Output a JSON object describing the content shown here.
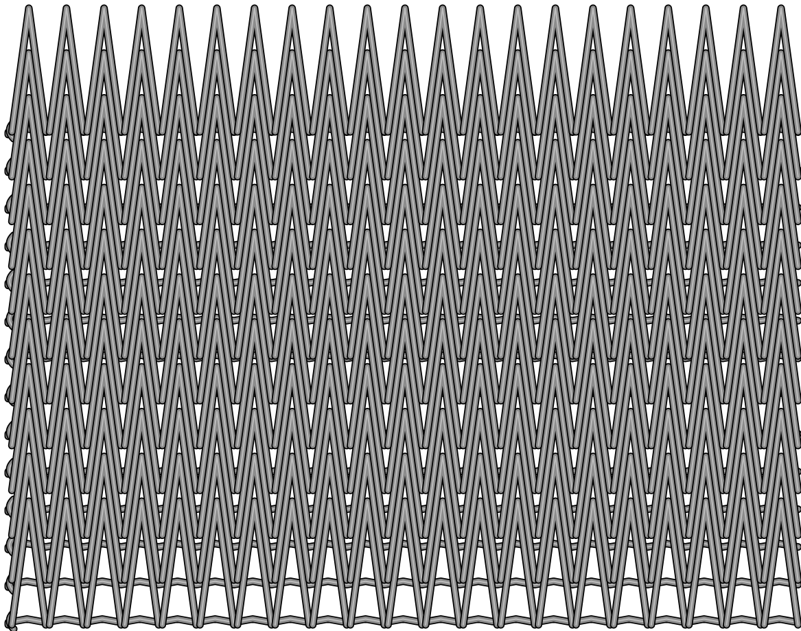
{
  "diagram": {
    "subject": "woven-wire-mesh-belt",
    "colors": {
      "background": "#ffffff",
      "wire_fill": "#8c8c8c",
      "wire_highlight": "#bdbdbd",
      "wire_outline": "#000000"
    },
    "structure": {
      "zigzag_peaks": 21,
      "horizontal_rods": 14,
      "zigzag_layers": 12
    }
  }
}
